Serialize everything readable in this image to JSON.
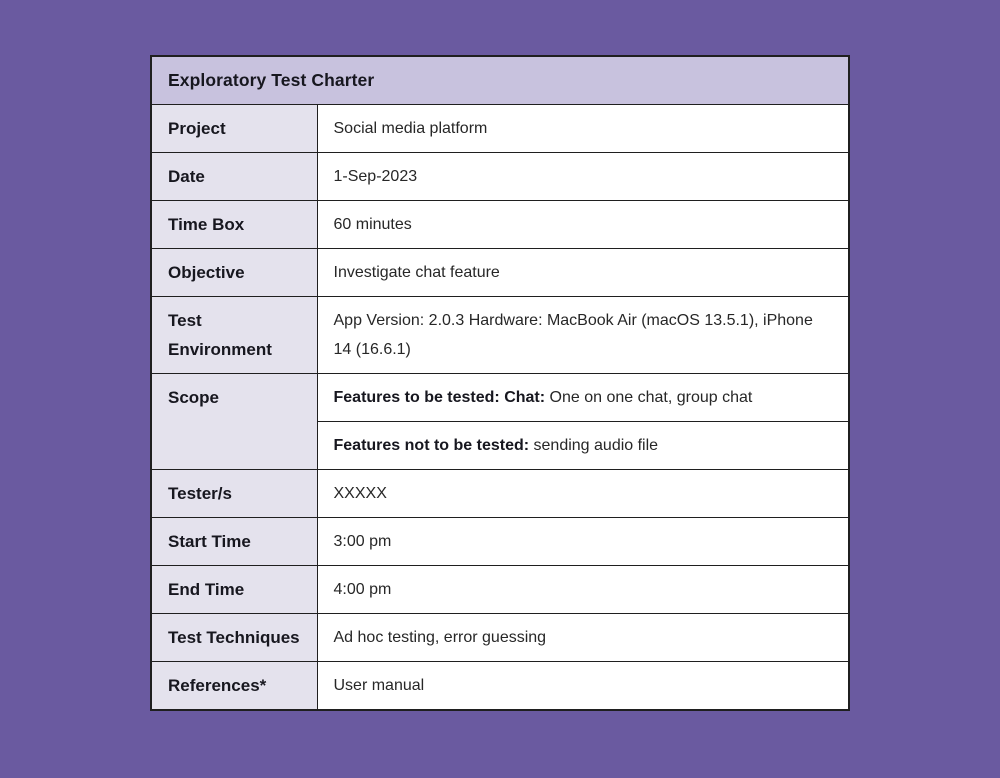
{
  "colors": {
    "page_bg": "#6a5aa0",
    "header_bg": "#c8c2de",
    "label_bg": "#e4e2ed",
    "value_bg": "#ffffff",
    "border": "#1f1f1f",
    "label_text": "#17171f",
    "value_text": "#272727"
  },
  "table": {
    "title": "Exploratory Test Charter",
    "rows": [
      {
        "label": "Project",
        "value": "Social media platform"
      },
      {
        "label": "Date",
        "value": "1-Sep-2023"
      },
      {
        "label": "Time Box",
        "value": "60 minutes"
      },
      {
        "label": "Objective",
        "value": "Investigate chat feature"
      },
      {
        "label": "Test Environment",
        "value": "App Version: 2.0.3 Hardware: MacBook Air (macOS 13.5.1), iPhone 14 (16.6.1)"
      },
      {
        "label": "Scope",
        "items": [
          {
            "bold": "Features to be tested: Chat:",
            "text": " One on one chat, group chat"
          },
          {
            "bold": "Features not to be tested:",
            "text": " sending audio file"
          }
        ]
      },
      {
        "label": "Tester/s",
        "value": "XXXXX"
      },
      {
        "label": "Start Time",
        "value": "3:00 pm"
      },
      {
        "label": "End Time",
        "value": "4:00 pm"
      },
      {
        "label": "Test Techniques",
        "value": "Ad hoc testing, error guessing"
      },
      {
        "label": "References*",
        "value": "User manual"
      }
    ]
  }
}
